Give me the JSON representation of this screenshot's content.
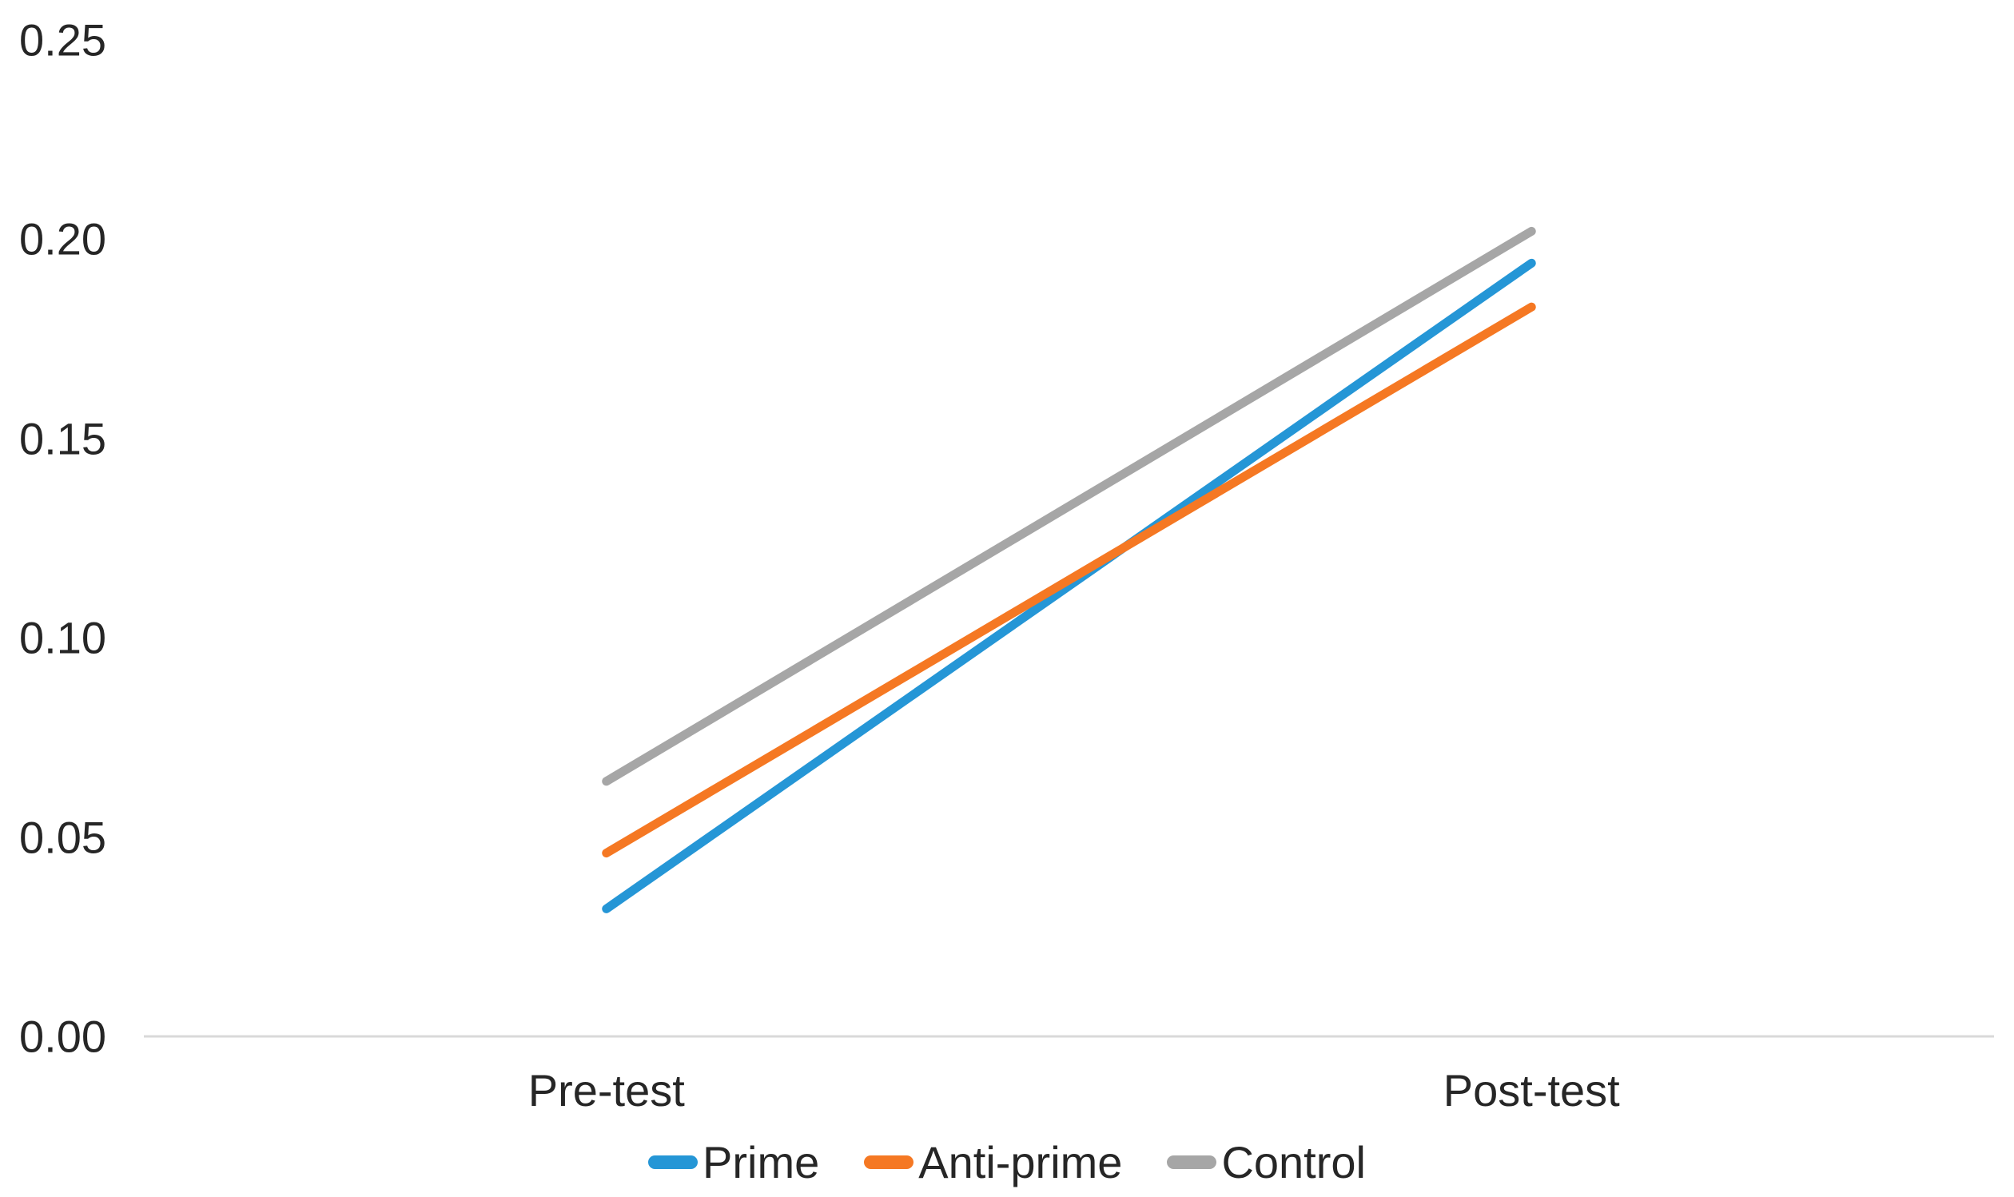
{
  "chart_data": {
    "type": "line",
    "title": "",
    "xlabel": "",
    "ylabel": "",
    "categories": [
      "Pre-test",
      "Post-test"
    ],
    "series": [
      {
        "name": "Prime",
        "color": "#2596D6",
        "values": [
          0.032,
          0.194
        ]
      },
      {
        "name": "Anti-prime",
        "color": "#F57823",
        "values": [
          0.046,
          0.183
        ]
      },
      {
        "name": "Control",
        "color": "#A6A6A6",
        "values": [
          0.064,
          0.202
        ]
      }
    ],
    "ylim": [
      0,
      0.25
    ],
    "yticks": [
      {
        "label": "0.00",
        "value": 0.0
      },
      {
        "label": "0.05",
        "value": 0.05
      },
      {
        "label": "0.10",
        "value": 0.1
      },
      {
        "label": "0.15",
        "value": 0.15
      },
      {
        "label": "0.20",
        "value": 0.2
      },
      {
        "label": "0.25",
        "value": 0.25
      }
    ],
    "grid": false,
    "legend_position": "bottom",
    "colors": {
      "axis_line": "#D9D9D9",
      "text": "#262626",
      "background": "#FFFFFF"
    }
  }
}
